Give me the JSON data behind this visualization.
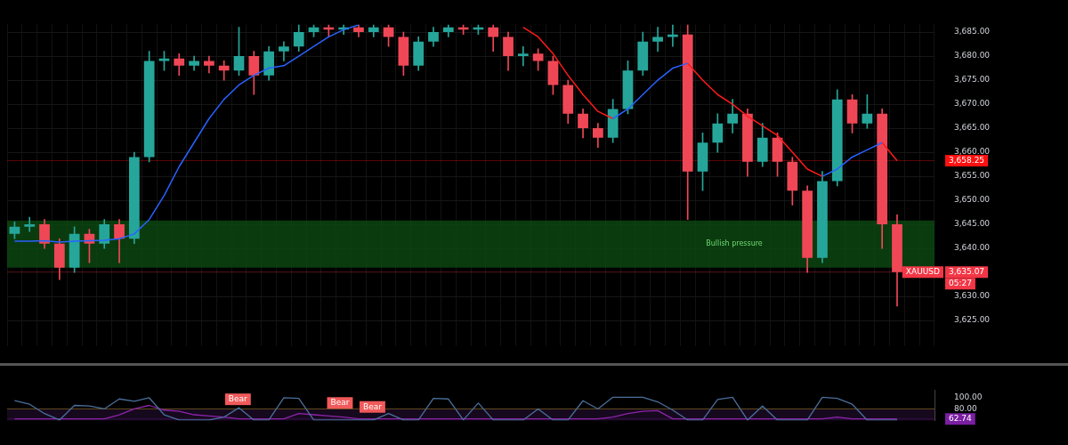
{
  "chart_data": [
    {
      "type": "candlestick",
      "categories": [
        null,
        null,
        null,
        null,
        null,
        null,
        null,
        null,
        null,
        null,
        null,
        null,
        null,
        null,
        null,
        null,
        null,
        null,
        null,
        null,
        null,
        null,
        null,
        null,
        null,
        null,
        null,
        null,
        null,
        null,
        null,
        null,
        null,
        null,
        null,
        null,
        null,
        null,
        null,
        null,
        null,
        null,
        null,
        null,
        null,
        null,
        null,
        null,
        null,
        null,
        null,
        null,
        null,
        null,
        null,
        null,
        null,
        null,
        null,
        null,
        null,
        null
      ],
      "ohlc": [
        [
          3643,
          3645.5,
          3642,
          3644.5
        ],
        [
          3644.5,
          3646.5,
          3643.5,
          3645
        ],
        [
          3645,
          3646,
          3640,
          3641
        ],
        [
          3641,
          3642,
          3633.5,
          3636
        ],
        [
          3636,
          3644.5,
          3635,
          3643
        ],
        [
          3643,
          3644,
          3637,
          3641
        ],
        [
          3641,
          3646,
          3640,
          3645
        ],
        [
          3645,
          3646,
          3637,
          3642
        ],
        [
          3642,
          3660,
          3641,
          3659
        ],
        [
          3659,
          3681,
          3658,
          3679
        ],
        [
          3679,
          3681,
          3677,
          3679.5
        ],
        [
          3679.5,
          3680.5,
          3676,
          3678
        ],
        [
          3678,
          3680,
          3677,
          3679
        ],
        [
          3679,
          3680,
          3676.5,
          3678
        ],
        [
          3678,
          3679,
          3675,
          3677
        ],
        [
          3677,
          3686,
          3676,
          3680
        ],
        [
          3680,
          3681,
          3672,
          3676
        ],
        [
          3676,
          3682,
          3675,
          3681
        ],
        [
          3681,
          3683,
          3679,
          3682
        ],
        [
          3682,
          3686.5,
          3681,
          3685
        ],
        [
          3685,
          3686.5,
          3684,
          3686
        ],
        [
          3686,
          3686.5,
          3684,
          3685.5
        ],
        [
          3685.5,
          3686.5,
          3684.5,
          3686
        ],
        [
          3686,
          3686.5,
          3684,
          3685
        ],
        [
          3685,
          3686.5,
          3684,
          3686
        ],
        [
          3686,
          3686.5,
          3682,
          3684
        ],
        [
          3684,
          3685,
          3676,
          3678
        ],
        [
          3678,
          3684,
          3677,
          3683
        ],
        [
          3683,
          3686,
          3682,
          3685
        ],
        [
          3685,
          3686.5,
          3684,
          3686
        ],
        [
          3686,
          3686.5,
          3684.5,
          3685.5
        ],
        [
          3685.5,
          3686.5,
          3684.5,
          3686
        ],
        [
          3686,
          3686.5,
          3681,
          3684
        ],
        [
          3684,
          3685,
          3677,
          3680
        ],
        [
          3680,
          3682,
          3678,
          3680.5
        ],
        [
          3680.5,
          3681.5,
          3677,
          3679
        ],
        [
          3679,
          3680,
          3672,
          3674
        ],
        [
          3674,
          3675,
          3666,
          3668
        ],
        [
          3668,
          3669,
          3663,
          3665
        ],
        [
          3665,
          3666,
          3661,
          3663
        ],
        [
          3663,
          3671,
          3662,
          3669
        ],
        [
          3669,
          3679,
          3668,
          3677
        ],
        [
          3677,
          3685,
          3676,
          3683
        ],
        [
          3683,
          3686,
          3681,
          3684
        ],
        [
          3684,
          3686.5,
          3682,
          3684.5
        ],
        [
          3684.5,
          3686.5,
          3646,
          3656
        ],
        [
          3656,
          3664,
          3652,
          3662
        ],
        [
          3662,
          3668,
          3660,
          3666
        ],
        [
          3666,
          3671,
          3664,
          3668
        ],
        [
          3668,
          3669,
          3655,
          3658
        ],
        [
          3658,
          3666,
          3657,
          3663
        ],
        [
          3663,
          3664,
          3655,
          3658
        ],
        [
          3658,
          3659,
          3649,
          3652
        ],
        [
          3652,
          3653,
          3635,
          3638
        ],
        [
          3638,
          3656,
          3637,
          3654
        ],
        [
          3654,
          3673,
          3653,
          3671
        ],
        [
          3671,
          3672,
          3664,
          3666
        ],
        [
          3666,
          3672,
          3665,
          3668
        ],
        [
          3668,
          3669,
          3640,
          3645
        ],
        [
          3645,
          3647,
          3628,
          3635.07
        ],
        null,
        null
      ],
      "colors": [
        "#26a69a",
        "#26a69a",
        "#ef4756",
        "#ef4756",
        "#26a69a",
        "#ef4756",
        "#26a69a",
        "#ef4756",
        "#26a69a",
        "#26a69a",
        "#26a69a",
        "#ef4756",
        "#26a69a",
        "#ef4756",
        "#ef4756",
        "#26a69a",
        "#ef4756",
        "#26a69a",
        "#26a69a",
        "#26a69a",
        "#26a69a",
        "#ef4756",
        "#26a69a",
        "#ef4756",
        "#26a69a",
        "#ef4756",
        "#ef4756",
        "#26a69a",
        "#26a69a",
        "#26a69a",
        "#ef4756",
        "#26a69a",
        "#ef4756",
        "#ef4756",
        "#26a69a",
        "#ef4756",
        "#ef4756",
        "#ef4756",
        "#ef4756",
        "#ef4756",
        "#26a69a",
        "#26a69a",
        "#26a69a",
        "#26a69a",
        "#26a69a",
        "#ef4756",
        "#26a69a",
        "#26a69a",
        "#26a69a",
        "#ef4756",
        "#26a69a",
        "#ef4756",
        "#ef4756",
        "#ef4756",
        "#26a69a",
        "#26a69a",
        "#ef4756",
        "#26a69a",
        "#ef4756",
        "#ef4756",
        null,
        null
      ],
      "series": [
        {
          "type": "line",
          "color": "#2962ff",
          "values": [
            3641.5,
            3641.5,
            3641.6,
            3641.3,
            3641.5,
            3641.6,
            3641.7,
            3642,
            3643,
            3646,
            3651,
            3657,
            3662,
            3667,
            3671,
            3674,
            3676,
            3677.5,
            3678,
            3680,
            3682,
            3684,
            3685.5,
            3686.5,
            null,
            null,
            null,
            null,
            null,
            null,
            null,
            null,
            null,
            null,
            null,
            null,
            null,
            null,
            null,
            null,
            3667,
            3669,
            3672,
            3675,
            3677.5,
            3678.5,
            null,
            null,
            null,
            null,
            null,
            null,
            null,
            null,
            3655,
            3656.5,
            3659,
            3660.5,
            3662,
            null,
            null,
            null
          ]
        },
        {
          "type": "line",
          "color": "#ff1a1a",
          "values": [
            null,
            null,
            null,
            null,
            null,
            null,
            null,
            null,
            null,
            null,
            null,
            null,
            null,
            null,
            null,
            null,
            null,
            null,
            null,
            null,
            null,
            null,
            null,
            null,
            null,
            null,
            null,
            null,
            null,
            null,
            null,
            null,
            null,
            null,
            3686,
            3684,
            3680.5,
            3676,
            3672,
            3668.5,
            3667,
            null,
            null,
            null,
            null,
            3678.5,
            3675,
            3672,
            3670,
            3667.5,
            3665.5,
            3663.5,
            3660,
            3656.5,
            3655,
            null,
            null,
            null,
            3662,
            3658.25,
            null,
            null
          ]
        }
      ],
      "ylim": [
        3621.2,
        3686.6
      ],
      "yticks": [
        {
          "value": 3625,
          "label": "3,625.00"
        },
        {
          "value": 3630,
          "label": "3,630.00"
        },
        {
          "value": 3640,
          "label": "3,640.00"
        },
        {
          "value": 3645,
          "label": "3,645.00"
        },
        {
          "value": 3650,
          "label": "3,650.00"
        },
        {
          "value": 3655,
          "label": "3,655.00"
        },
        {
          "value": 3660,
          "label": "3,660.00"
        },
        {
          "value": 3665,
          "label": "3,665.00"
        },
        {
          "value": 3670,
          "label": "3,670.00"
        },
        {
          "value": 3675,
          "label": "3,675.00"
        },
        {
          "value": 3680,
          "label": "3,680.00"
        },
        {
          "value": 3685,
          "label": "3,685.00"
        }
      ],
      "tick_labels": "y",
      "grid": true,
      "legend": false,
      "ref_lines": [
        {
          "axis": "y",
          "value": 3635.07,
          "label": "3,635.07",
          "color": "#f23645"
        },
        {
          "axis": "y",
          "value": 3658.25,
          "label": "3,658.25",
          "color": "#ff1010"
        }
      ],
      "bands": [
        {
          "axis": "y",
          "from": 3636,
          "to": 3645.8,
          "label": "Bullish pressure",
          "color": "#0d4a12"
        }
      ],
      "annotations": [
        "XAUUSD",
        "05:27"
      ]
    },
    {
      "type": "line",
      "categories": [
        null,
        null,
        null,
        null,
        null,
        null,
        null,
        null,
        null,
        null,
        null,
        null,
        null,
        null,
        null,
        null,
        null,
        null,
        null,
        null,
        null,
        null,
        null,
        null,
        null,
        null,
        null,
        null,
        null,
        null,
        null,
        null,
        null,
        null,
        null,
        null,
        null,
        null,
        null,
        null,
        null,
        null,
        null,
        null,
        null,
        null,
        null,
        null,
        null,
        null,
        null,
        null,
        null,
        null,
        null,
        null,
        null,
        null,
        null,
        null,
        null,
        null
      ],
      "ylim": [
        60,
        112
      ],
      "yticks": [
        {
          "value": 80,
          "label": "80.00"
        },
        {
          "value": 100,
          "label": "100.00"
        }
      ],
      "tick_labels": "y",
      "grid": false,
      "legend": false,
      "series": [
        {
          "color": "#4a6f9a",
          "values": [
            94,
            88,
            72,
            61,
            86,
            85,
            80,
            97,
            93,
            99,
            70,
            61,
            61,
            61,
            66,
            82,
            61,
            61,
            99,
            98,
            61,
            61,
            61,
            61,
            61,
            72,
            61,
            61,
            98,
            97,
            61,
            90,
            61,
            61,
            61,
            80,
            61,
            61,
            94,
            80,
            100,
            100,
            100,
            92,
            78,
            61,
            61,
            96,
            100,
            61,
            85,
            61,
            61,
            61,
            100,
            98,
            88,
            61,
            61,
            61,
            null,
            null
          ]
        },
        {
          "color": "#8e24aa",
          "values": [
            63,
            63,
            63,
            63,
            63,
            63,
            63,
            70,
            80,
            86,
            78,
            76,
            70,
            68,
            66,
            63,
            63,
            63,
            63,
            72,
            70,
            68,
            66,
            63,
            63,
            63,
            63,
            63,
            63,
            63,
            63,
            63,
            63,
            63,
            63,
            63,
            63,
            63,
            63,
            63,
            66,
            72,
            76,
            77,
            63,
            63,
            63,
            63,
            63,
            63,
            63,
            63,
            63,
            63,
            63,
            66,
            63,
            63,
            63,
            63,
            null,
            null
          ]
        }
      ],
      "bands": [
        {
          "axis": "y",
          "from": 60,
          "to": 80,
          "color": "#1c0b26"
        }
      ],
      "ref_lines": [
        {
          "axis": "y",
          "value": 80,
          "color": "#6b5520"
        },
        {
          "axis": "y",
          "value": 62.74,
          "label": "62.74",
          "color": "#7b1fa2"
        }
      ],
      "annotations": [
        "Bear",
        "Bear",
        "Bear"
      ]
    }
  ]
}
